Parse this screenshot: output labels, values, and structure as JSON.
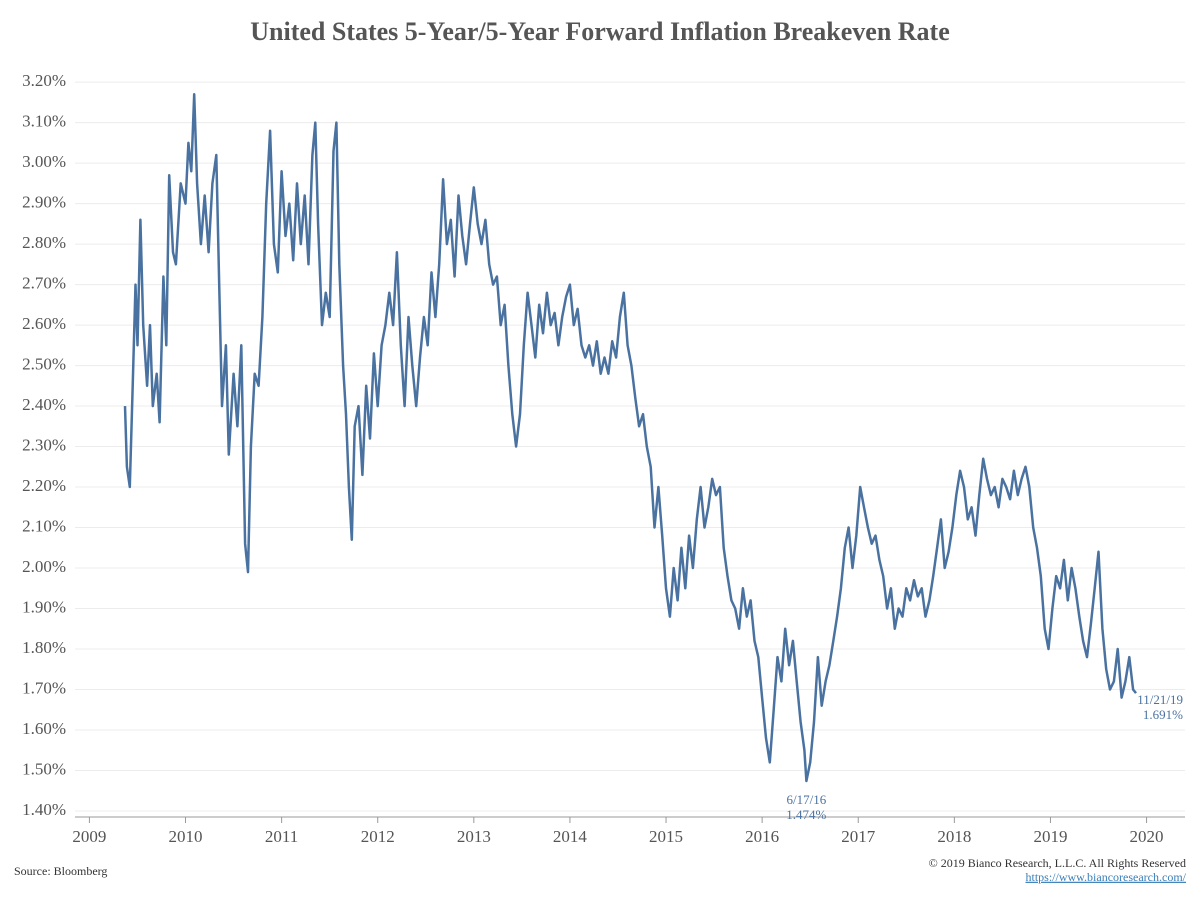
{
  "chart_data": {
    "type": "line",
    "title": "United States  5-Year/5-Year Forward Inflation Breakeven Rate",
    "source": "Source: Bloomberg",
    "copyright": "© 2019 Bianco Research, L.L.C. All Rights Reserved",
    "link": "https://www.biancoresearch.com/",
    "xlim": [
      2008.85,
      2020.4
    ],
    "xticks": [
      2009,
      2010,
      2011,
      2012,
      2013,
      2014,
      2015,
      2016,
      2017,
      2018,
      2019,
      2020
    ],
    "ylim": [
      1.39,
      3.23
    ],
    "yticks": [
      {
        "value": 1.4,
        "label": "1.40%"
      },
      {
        "value": 1.5,
        "label": "1.50%"
      },
      {
        "value": 1.6,
        "label": "1.60%"
      },
      {
        "value": 1.7,
        "label": "1.70%"
      },
      {
        "value": 1.8,
        "label": "1.80%"
      },
      {
        "value": 1.9,
        "label": "1.90%"
      },
      {
        "value": 2.0,
        "label": "2.00%"
      },
      {
        "value": 2.1,
        "label": "2.10%"
      },
      {
        "value": 2.2,
        "label": "2.20%"
      },
      {
        "value": 2.3,
        "label": "2.30%"
      },
      {
        "value": 2.4,
        "label": "2.40%"
      },
      {
        "value": 2.5,
        "label": "2.50%"
      },
      {
        "value": 2.6,
        "label": "2.60%"
      },
      {
        "value": 2.7,
        "label": "2.70%"
      },
      {
        "value": 2.8,
        "label": "2.80%"
      },
      {
        "value": 2.9,
        "label": "2.90%"
      },
      {
        "value": 3.0,
        "label": "3.00%"
      },
      {
        "value": 3.1,
        "label": "3.10%"
      },
      {
        "value": 3.2,
        "label": "3.20%"
      }
    ],
    "grid": true,
    "color": "#4a72a0",
    "x": [
      2009.37,
      2009.39,
      2009.42,
      2009.45,
      2009.48,
      2009.5,
      2009.53,
      2009.56,
      2009.6,
      2009.63,
      2009.66,
      2009.7,
      2009.73,
      2009.77,
      2009.8,
      2009.83,
      2009.87,
      2009.9,
      2009.95,
      2010.0,
      2010.03,
      2010.06,
      2010.09,
      2010.12,
      2010.16,
      2010.2,
      2010.24,
      2010.28,
      2010.32,
      2010.35,
      2010.38,
      2010.42,
      2010.45,
      2010.5,
      2010.54,
      2010.58,
      2010.62,
      2010.65,
      2010.68,
      2010.72,
      2010.76,
      2010.8,
      2010.84,
      2010.88,
      2010.92,
      2010.96,
      2011.0,
      2011.04,
      2011.08,
      2011.12,
      2011.16,
      2011.2,
      2011.24,
      2011.28,
      2011.32,
      2011.35,
      2011.38,
      2011.42,
      2011.46,
      2011.5,
      2011.54,
      2011.57,
      2011.6,
      2011.64,
      2011.67,
      2011.7,
      2011.73,
      2011.76,
      2011.8,
      2011.84,
      2011.88,
      2011.92,
      2011.96,
      2012.0,
      2012.04,
      2012.08,
      2012.12,
      2012.16,
      2012.2,
      2012.24,
      2012.28,
      2012.32,
      2012.36,
      2012.4,
      2012.44,
      2012.48,
      2012.52,
      2012.56,
      2012.6,
      2012.64,
      2012.68,
      2012.72,
      2012.76,
      2012.8,
      2012.84,
      2012.88,
      2012.92,
      2012.96,
      2013.0,
      2013.04,
      2013.08,
      2013.12,
      2013.16,
      2013.2,
      2013.24,
      2013.28,
      2013.32,
      2013.36,
      2013.4,
      2013.44,
      2013.48,
      2013.52,
      2013.56,
      2013.6,
      2013.64,
      2013.68,
      2013.72,
      2013.76,
      2013.8,
      2013.84,
      2013.88,
      2013.92,
      2013.96,
      2014.0,
      2014.04,
      2014.08,
      2014.12,
      2014.16,
      2014.2,
      2014.24,
      2014.28,
      2014.32,
      2014.36,
      2014.4,
      2014.44,
      2014.48,
      2014.52,
      2014.56,
      2014.6,
      2014.64,
      2014.68,
      2014.72,
      2014.76,
      2014.8,
      2014.84,
      2014.88,
      2014.92,
      2014.96,
      2015.0,
      2015.04,
      2015.08,
      2015.12,
      2015.16,
      2015.2,
      2015.24,
      2015.28,
      2015.32,
      2015.36,
      2015.4,
      2015.44,
      2015.48,
      2015.52,
      2015.56,
      2015.6,
      2015.64,
      2015.68,
      2015.72,
      2015.76,
      2015.8,
      2015.84,
      2015.88,
      2015.92,
      2015.96,
      2016.0,
      2016.04,
      2016.08,
      2016.12,
      2016.16,
      2016.2,
      2016.24,
      2016.28,
      2016.32,
      2016.36,
      2016.4,
      2016.44,
      2016.46,
      2016.5,
      2016.54,
      2016.58,
      2016.62,
      2016.66,
      2016.7,
      2016.74,
      2016.78,
      2016.82,
      2016.86,
      2016.9,
      2016.94,
      2016.98,
      2017.02,
      2017.06,
      2017.1,
      2017.14,
      2017.18,
      2017.22,
      2017.26,
      2017.3,
      2017.34,
      2017.38,
      2017.42,
      2017.46,
      2017.5,
      2017.54,
      2017.58,
      2017.62,
      2017.66,
      2017.7,
      2017.74,
      2017.78,
      2017.82,
      2017.86,
      2017.9,
      2017.94,
      2017.98,
      2018.02,
      2018.06,
      2018.1,
      2018.14,
      2018.18,
      2018.22,
      2018.26,
      2018.3,
      2018.34,
      2018.38,
      2018.42,
      2018.46,
      2018.5,
      2018.54,
      2018.58,
      2018.62,
      2018.66,
      2018.7,
      2018.74,
      2018.78,
      2018.82,
      2018.86,
      2018.9,
      2018.94,
      2018.98,
      2019.02,
      2019.06,
      2019.1,
      2019.14,
      2019.18,
      2019.22,
      2019.26,
      2019.3,
      2019.34,
      2019.38,
      2019.42,
      2019.46,
      2019.5,
      2019.54,
      2019.58,
      2019.62,
      2019.66,
      2019.7,
      2019.74,
      2019.78,
      2019.82,
      2019.86,
      2019.89
    ],
    "values": [
      2.4,
      2.25,
      2.2,
      2.45,
      2.7,
      2.55,
      2.86,
      2.6,
      2.45,
      2.6,
      2.4,
      2.48,
      2.36,
      2.72,
      2.55,
      2.97,
      2.78,
      2.75,
      2.95,
      2.9,
      3.05,
      2.98,
      3.17,
      2.95,
      2.8,
      2.92,
      2.78,
      2.95,
      3.02,
      2.7,
      2.4,
      2.55,
      2.28,
      2.48,
      2.35,
      2.55,
      2.06,
      1.99,
      2.3,
      2.48,
      2.45,
      2.62,
      2.9,
      3.08,
      2.8,
      2.73,
      2.98,
      2.82,
      2.9,
      2.76,
      2.95,
      2.8,
      2.92,
      2.75,
      3.02,
      3.1,
      2.85,
      2.6,
      2.68,
      2.62,
      3.03,
      3.1,
      2.75,
      2.5,
      2.38,
      2.2,
      2.07,
      2.35,
      2.4,
      2.23,
      2.45,
      2.32,
      2.53,
      2.4,
      2.55,
      2.6,
      2.68,
      2.6,
      2.78,
      2.55,
      2.4,
      2.62,
      2.5,
      2.4,
      2.52,
      2.62,
      2.55,
      2.73,
      2.62,
      2.75,
      2.96,
      2.8,
      2.86,
      2.72,
      2.92,
      2.82,
      2.75,
      2.85,
      2.94,
      2.85,
      2.8,
      2.86,
      2.75,
      2.7,
      2.72,
      2.6,
      2.65,
      2.5,
      2.38,
      2.3,
      2.38,
      2.55,
      2.68,
      2.6,
      2.52,
      2.65,
      2.58,
      2.68,
      2.6,
      2.63,
      2.55,
      2.62,
      2.67,
      2.7,
      2.6,
      2.64,
      2.55,
      2.52,
      2.55,
      2.5,
      2.56,
      2.48,
      2.52,
      2.48,
      2.56,
      2.52,
      2.62,
      2.68,
      2.55,
      2.5,
      2.42,
      2.35,
      2.38,
      2.3,
      2.25,
      2.1,
      2.2,
      2.08,
      1.95,
      1.88,
      2.0,
      1.92,
      2.05,
      1.95,
      2.08,
      2.0,
      2.12,
      2.2,
      2.1,
      2.15,
      2.22,
      2.18,
      2.2,
      2.05,
      1.98,
      1.92,
      1.9,
      1.85,
      1.95,
      1.88,
      1.92,
      1.82,
      1.78,
      1.68,
      1.58,
      1.52,
      1.65,
      1.78,
      1.72,
      1.85,
      1.76,
      1.82,
      1.72,
      1.62,
      1.55,
      1.474,
      1.52,
      1.62,
      1.78,
      1.66,
      1.72,
      1.76,
      1.82,
      1.88,
      1.95,
      2.05,
      2.1,
      2.0,
      2.08,
      2.2,
      2.15,
      2.1,
      2.06,
      2.08,
      2.02,
      1.98,
      1.9,
      1.95,
      1.85,
      1.9,
      1.88,
      1.95,
      1.92,
      1.97,
      1.93,
      1.95,
      1.88,
      1.92,
      1.98,
      2.05,
      2.12,
      2.0,
      2.04,
      2.1,
      2.18,
      2.24,
      2.2,
      2.12,
      2.15,
      2.08,
      2.18,
      2.27,
      2.22,
      2.18,
      2.2,
      2.15,
      2.22,
      2.2,
      2.17,
      2.24,
      2.18,
      2.22,
      2.25,
      2.2,
      2.1,
      2.05,
      1.98,
      1.85,
      1.8,
      1.9,
      1.98,
      1.95,
      2.02,
      1.92,
      2.0,
      1.95,
      1.88,
      1.82,
      1.78,
      1.86,
      1.95,
      2.04,
      1.85,
      1.75,
      1.7,
      1.72,
      1.8,
      1.68,
      1.72,
      1.78,
      1.7,
      1.691
    ],
    "annotations": [
      {
        "date": "6/17/16",
        "label": "1.474%",
        "x": 2016.46,
        "y": 1.474
      },
      {
        "date": "11/21/19",
        "label": "1.691%",
        "x": 2019.89,
        "y": 1.691
      }
    ]
  }
}
